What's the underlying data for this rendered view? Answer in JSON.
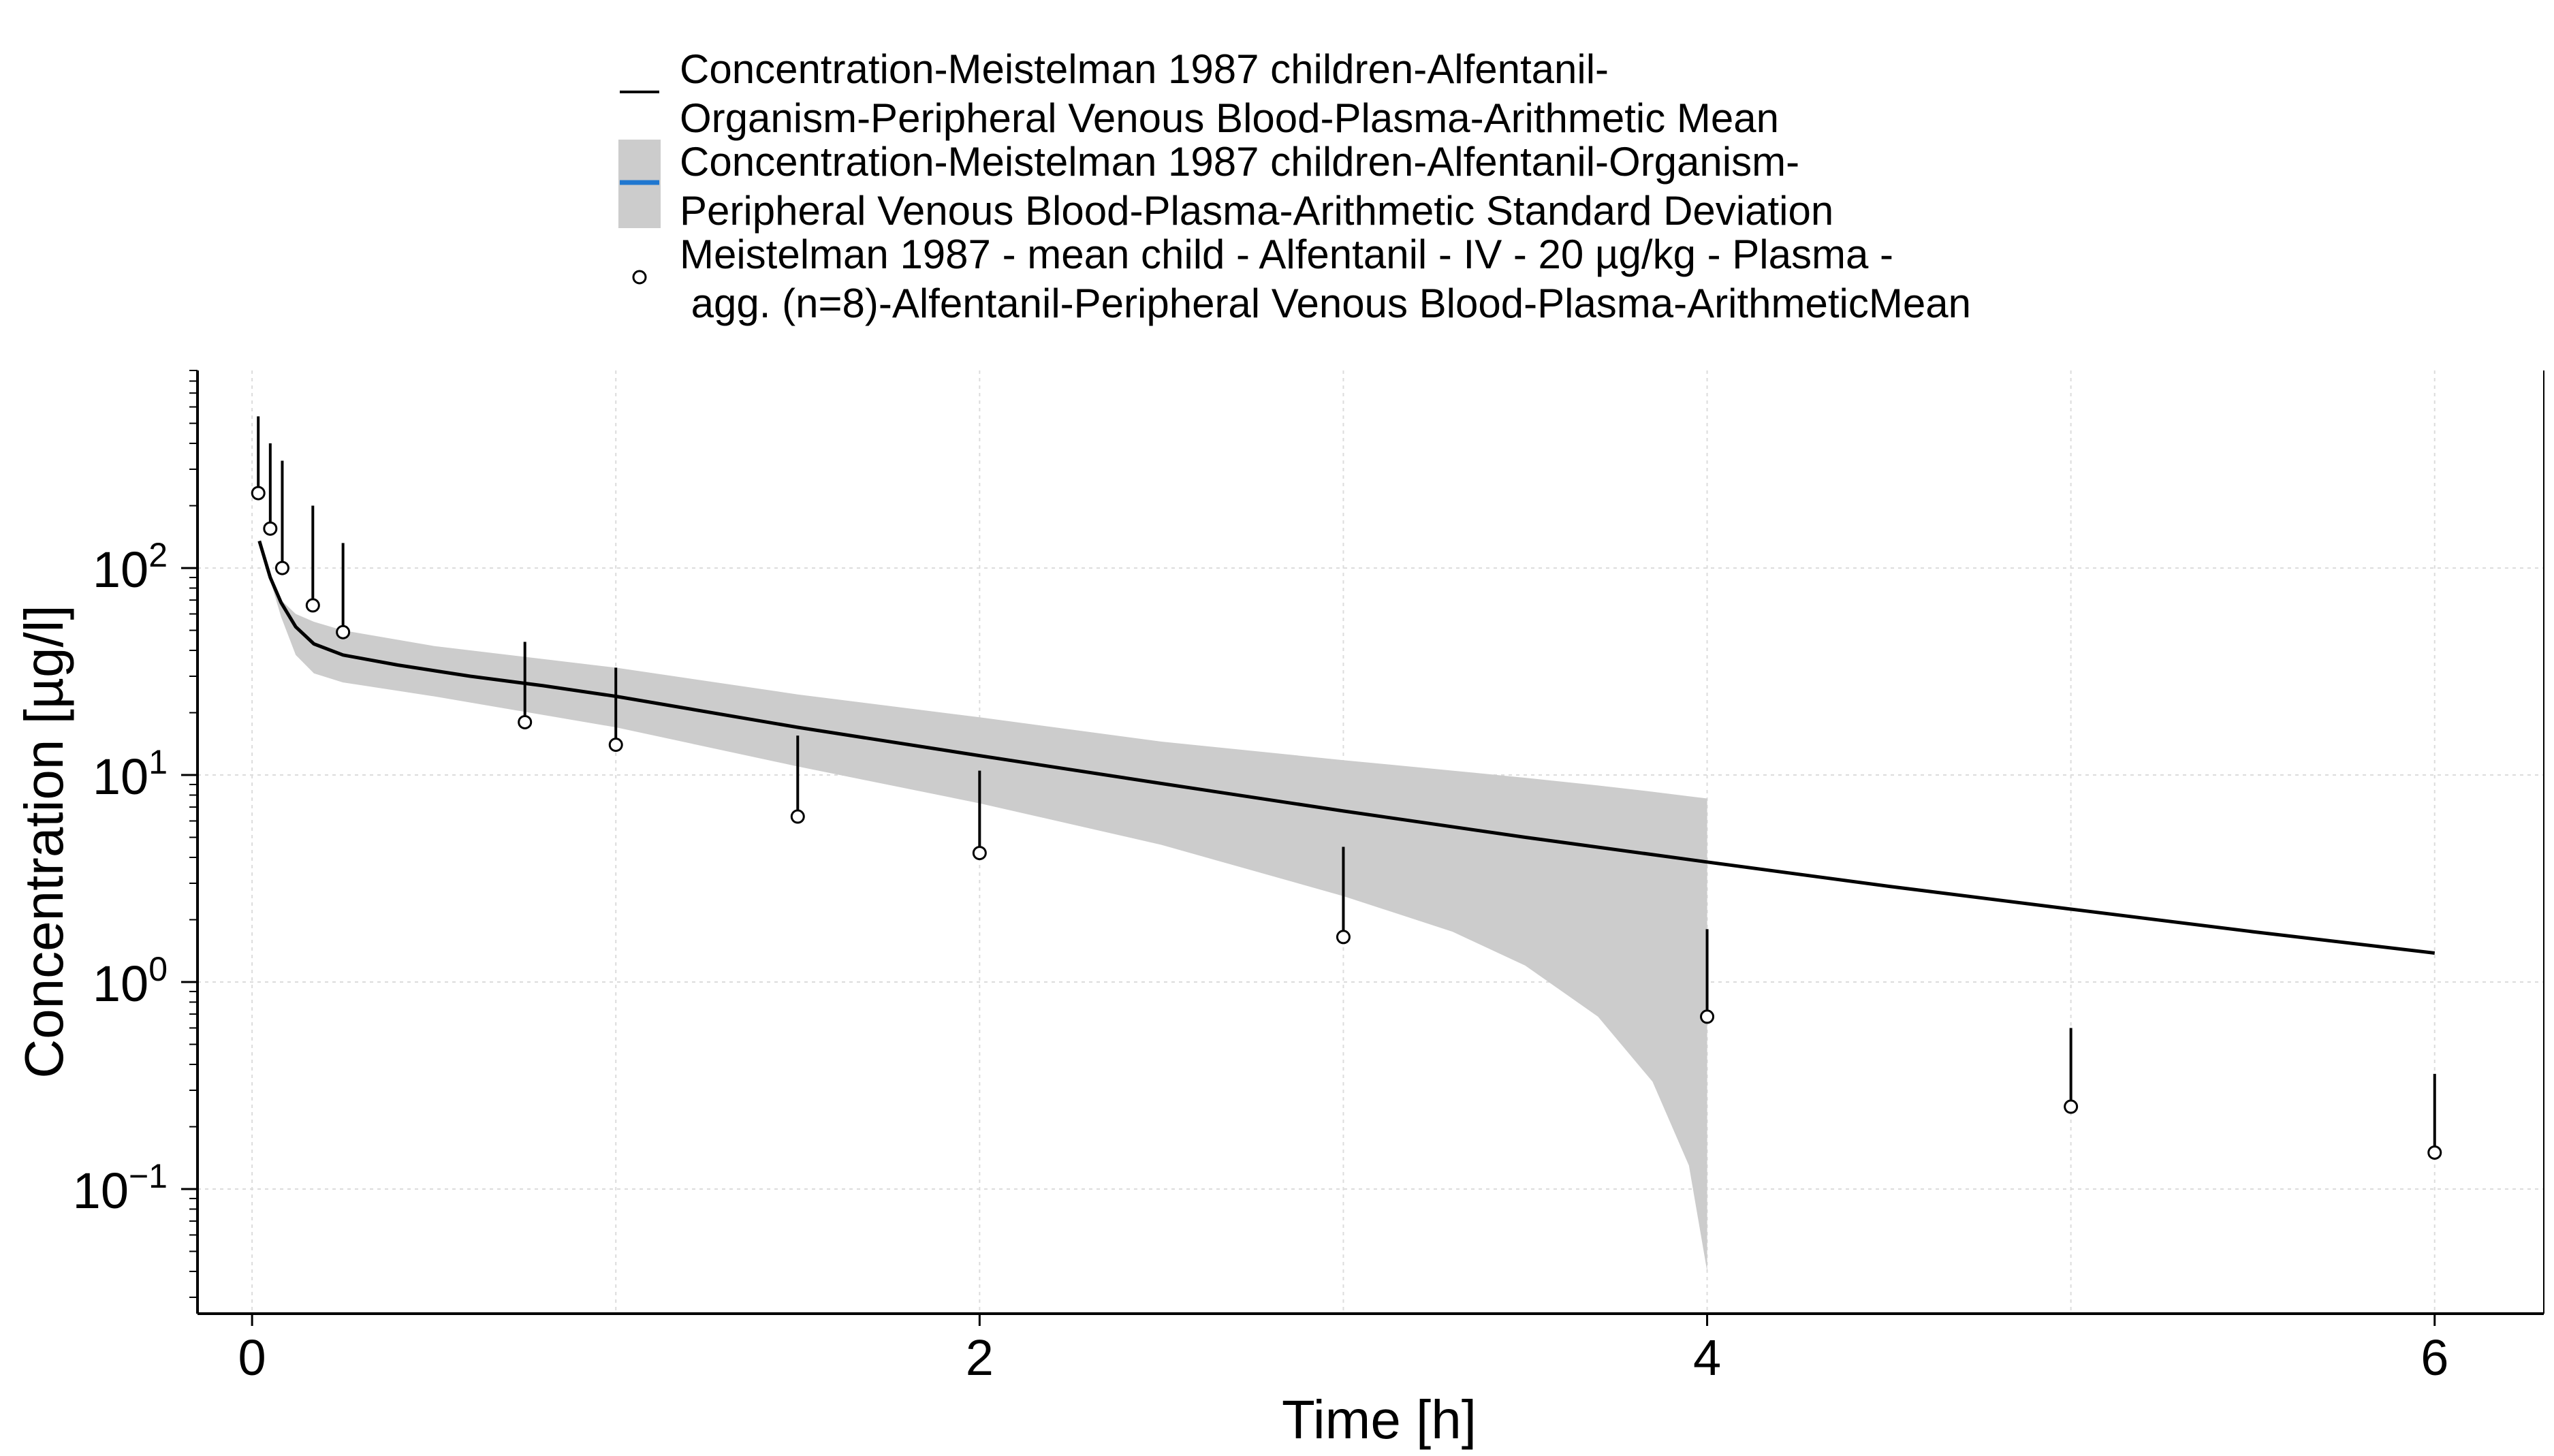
{
  "chart_data": {
    "type": "line",
    "xlabel": "Time [h]",
    "ylabel": "Concentration [µg/l]",
    "xlim": [
      -0.15,
      6.3
    ],
    "ylim": [
      0.025,
      900
    ],
    "y_scale": "log",
    "grid": true,
    "legend_position": "top",
    "x_ticks": [
      {
        "value": 0,
        "label": "0"
      },
      {
        "value": 2,
        "label": "2"
      },
      {
        "value": 4,
        "label": "4"
      },
      {
        "value": 6,
        "label": "6"
      }
    ],
    "y_ticks": [
      {
        "value": 0.1,
        "base": "10",
        "exp": "−1"
      },
      {
        "value": 1,
        "base": "10",
        "exp": "0"
      },
      {
        "value": 10,
        "base": "10",
        "exp": "1"
      },
      {
        "value": 100,
        "base": "10",
        "exp": "2"
      }
    ],
    "legend": [
      {
        "key": "mean",
        "line1": "Concentration-Meistelman 1987 children-Alfentanil-",
        "line2": "Organism-Peripheral Venous Blood-Plasma-Arithmetic Mean"
      },
      {
        "key": "sd",
        "line1": "Concentration-Meistelman 1987 children-Alfentanil-Organism-",
        "line2": "Peripheral Venous Blood-Plasma-Arithmetic Standard Deviation"
      },
      {
        "key": "obs",
        "line1": "Meistelman 1987 - mean child - Alfentanil - IV - 20 µg/kg - Plasma -",
        "line2": " agg. (n=8)-Alfentanil-Peripheral Venous Blood-Plasma-ArithmeticMean"
      }
    ],
    "series": [
      {
        "name": "Concentration-Meistelman 1987 children-Alfentanil-Organism-Peripheral Venous Blood-Plasma-Arithmetic Mean",
        "type": "line",
        "color": "#000000",
        "x": [
          0.02,
          0.05,
          0.08,
          0.12,
          0.17,
          0.25,
          0.4,
          0.6,
          0.8,
          1.0,
          1.5,
          2.0,
          2.5,
          3.0,
          3.5,
          4.0,
          4.5,
          5.0,
          5.5,
          6.0
        ],
        "y": [
          135,
          90,
          68,
          52,
          43,
          38,
          34,
          30,
          27,
          24,
          17,
          12.4,
          9.1,
          6.7,
          5.0,
          3.8,
          2.9,
          2.25,
          1.75,
          1.38
        ]
      },
      {
        "name": "Concentration-Meistelman 1987 children-Alfentanil-Organism-Peripheral Venous Blood-Plasma-Arithmetic Standard Deviation",
        "type": "band",
        "color": "#cccccc",
        "x": [
          0.04,
          0.08,
          0.12,
          0.17,
          0.25,
          0.5,
          1.0,
          1.5,
          2.0,
          2.5,
          3.0,
          3.3,
          3.5,
          3.7,
          3.85,
          3.95,
          4.0
        ],
        "lower": [
          100,
          58,
          38,
          31,
          28,
          24,
          17,
          11,
          7.3,
          4.6,
          2.6,
          1.75,
          1.2,
          0.68,
          0.33,
          0.13,
          0.04
        ],
        "upper": [
          105,
          70,
          60,
          55,
          50,
          42,
          33,
          24.5,
          19,
          14.5,
          11.8,
          10.5,
          9.7,
          8.9,
          8.3,
          7.9,
          7.7
        ]
      },
      {
        "name": "Meistelman 1987 - mean child - Alfentanil - IV - 20 µg/kg - Plasma - agg. (n=8)-Alfentanil-Peripheral Venous Blood-Plasma-ArithmeticMean",
        "type": "scatter",
        "color": "#000000",
        "x": [
          0.017,
          0.05,
          0.083,
          0.167,
          0.25,
          0.75,
          1.0,
          1.5,
          2.0,
          3.0,
          4.0,
          5.0,
          6.0
        ],
        "y": [
          230,
          155,
          100,
          66,
          49,
          18,
          14,
          6.3,
          4.2,
          1.65,
          0.68,
          0.25,
          0.15
        ],
        "error_upper": [
          540,
          400,
          330,
          200,
          132,
          44,
          33,
          15.5,
          10.5,
          4.5,
          1.8,
          0.6,
          0.36
        ]
      }
    ]
  }
}
